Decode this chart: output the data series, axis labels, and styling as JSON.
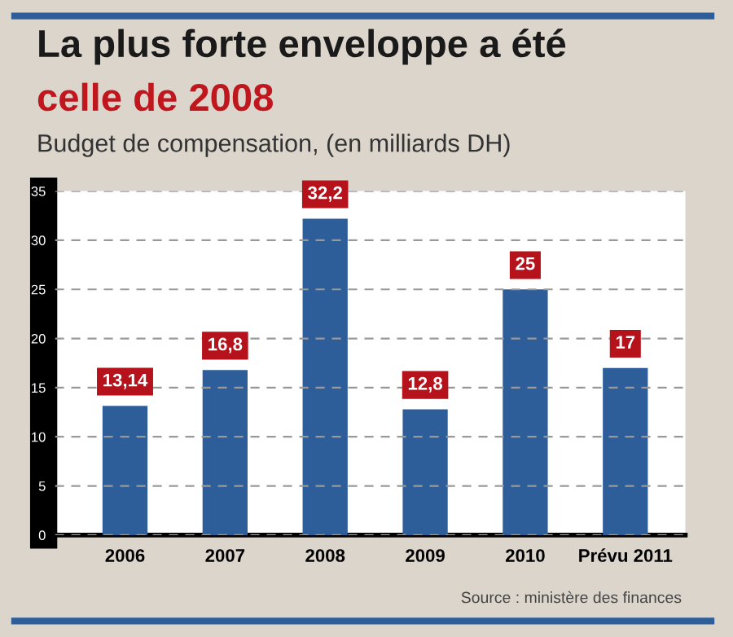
{
  "chart_data": {
    "type": "bar",
    "title": "La plus forte enveloppe a été\ncelle de 2008",
    "subtitle": "Budget de compensation, (en milliards DH)",
    "categories": [
      "2006",
      "2007",
      "2008",
      "2009",
      "2010",
      "Prévu 2011"
    ],
    "values": [
      13.14,
      16.8,
      32.2,
      12.8,
      25,
      17
    ],
    "value_labels": [
      "13,14",
      "16,8",
      "32,2",
      "12,8",
      "25",
      "17"
    ],
    "color": "#2e5e9a",
    "ylim": [
      0,
      35
    ],
    "yticks": [
      0,
      5,
      10,
      15,
      20,
      25,
      30,
      35
    ],
    "grid": "y",
    "annotations": [
      "Source : ministère des finances"
    ]
  }
}
